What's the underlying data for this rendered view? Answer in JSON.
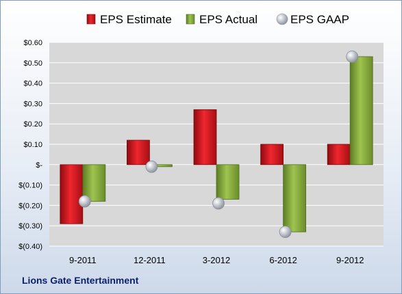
{
  "chart_data": {
    "type": "bar",
    "categories": [
      "9-2011",
      "12-2011",
      "3-2012",
      "6-2012",
      "9-2012"
    ],
    "series": [
      {
        "name": "EPS Estimate",
        "type": "bar",
        "color": "#e31b23",
        "values": [
          -0.29,
          0.12,
          0.27,
          0.1,
          0.1
        ]
      },
      {
        "name": "EPS Actual",
        "type": "bar",
        "color": "#8cb43c",
        "values": [
          -0.18,
          -0.01,
          -0.17,
          -0.33,
          0.53
        ]
      },
      {
        "name": "EPS GAAP",
        "type": "scatter",
        "color": "#b0b4bc",
        "values": [
          -0.18,
          -0.01,
          -0.19,
          -0.33,
          0.53
        ]
      }
    ],
    "yticks": [
      "$0.60",
      "$0.50",
      "$0.40",
      "$0.30",
      "$0.20",
      "$0.10",
      "$-",
      "$(0.10)",
      "$(0.20)",
      "$(0.30)",
      "$(0.40)"
    ],
    "ylim": [
      -0.4,
      0.6
    ],
    "grid": true,
    "legend_position": "top",
    "company": "Lions Gate Entertainment"
  }
}
